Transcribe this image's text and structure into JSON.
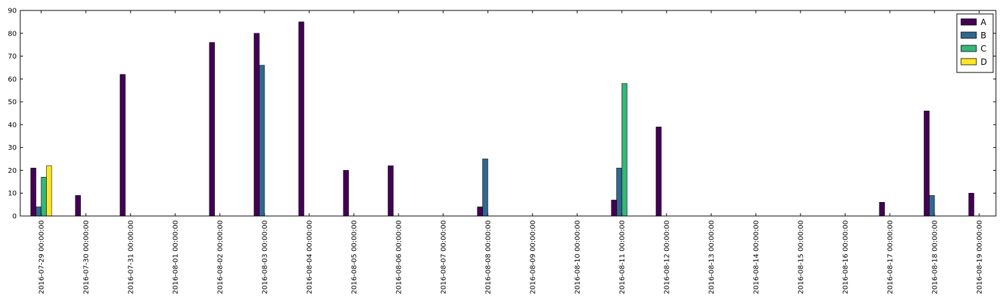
{
  "chart_data": {
    "type": "bar",
    "categories": [
      "2016-07-29 00:00:00",
      "2016-07-30 00:00:00",
      "2016-07-31 00:00:00",
      "2016-08-01 00:00:00",
      "2016-08-02 00:00:00",
      "2016-08-03 00:00:00",
      "2016-08-04 00:00:00",
      "2016-08-05 00:00:00",
      "2016-08-06 00:00:00",
      "2016-08-07 00:00:00",
      "2016-08-08 00:00:00",
      "2016-08-09 00:00:00",
      "2016-08-10 00:00:00",
      "2016-08-11 00:00:00",
      "2016-08-12 00:00:00",
      "2016-08-13 00:00:00",
      "2016-08-14 00:00:00",
      "2016-08-15 00:00:00",
      "2016-08-16 00:00:00",
      "2016-08-17 00:00:00",
      "2016-08-18 00:00:00",
      "2016-08-19 00:00:00"
    ],
    "series": [
      {
        "name": "A",
        "color": "#440154",
        "values": [
          21,
          9,
          62,
          0,
          76,
          80,
          85,
          20,
          22,
          0,
          4,
          0,
          0,
          7,
          39,
          0,
          0,
          0,
          0,
          6,
          46,
          10
        ]
      },
      {
        "name": "B",
        "color": "#31688e",
        "values": [
          4,
          0,
          0,
          0,
          0,
          66,
          0,
          0,
          0,
          0,
          25,
          0,
          0,
          21,
          0,
          0,
          0,
          0,
          0,
          0,
          9,
          0
        ]
      },
      {
        "name": "C",
        "color": "#35b779",
        "values": [
          17,
          0,
          0,
          0,
          0,
          0,
          0,
          0,
          0,
          0,
          0,
          0,
          0,
          58,
          0,
          0,
          0,
          0,
          0,
          0,
          0,
          0
        ]
      },
      {
        "name": "D",
        "color": "#fde725",
        "values": [
          22,
          0,
          0,
          0,
          0,
          0,
          0,
          0,
          0,
          0,
          0,
          0,
          0,
          0,
          0,
          0,
          0,
          0,
          0,
          0,
          0,
          0
        ]
      }
    ],
    "ylim": [
      0,
      90
    ],
    "yticks": [
      0,
      10,
      20,
      30,
      40,
      50,
      60,
      70,
      80,
      90
    ],
    "title": "",
    "xlabel": "",
    "ylabel": "",
    "grid": false,
    "legend_position": "top-right"
  }
}
